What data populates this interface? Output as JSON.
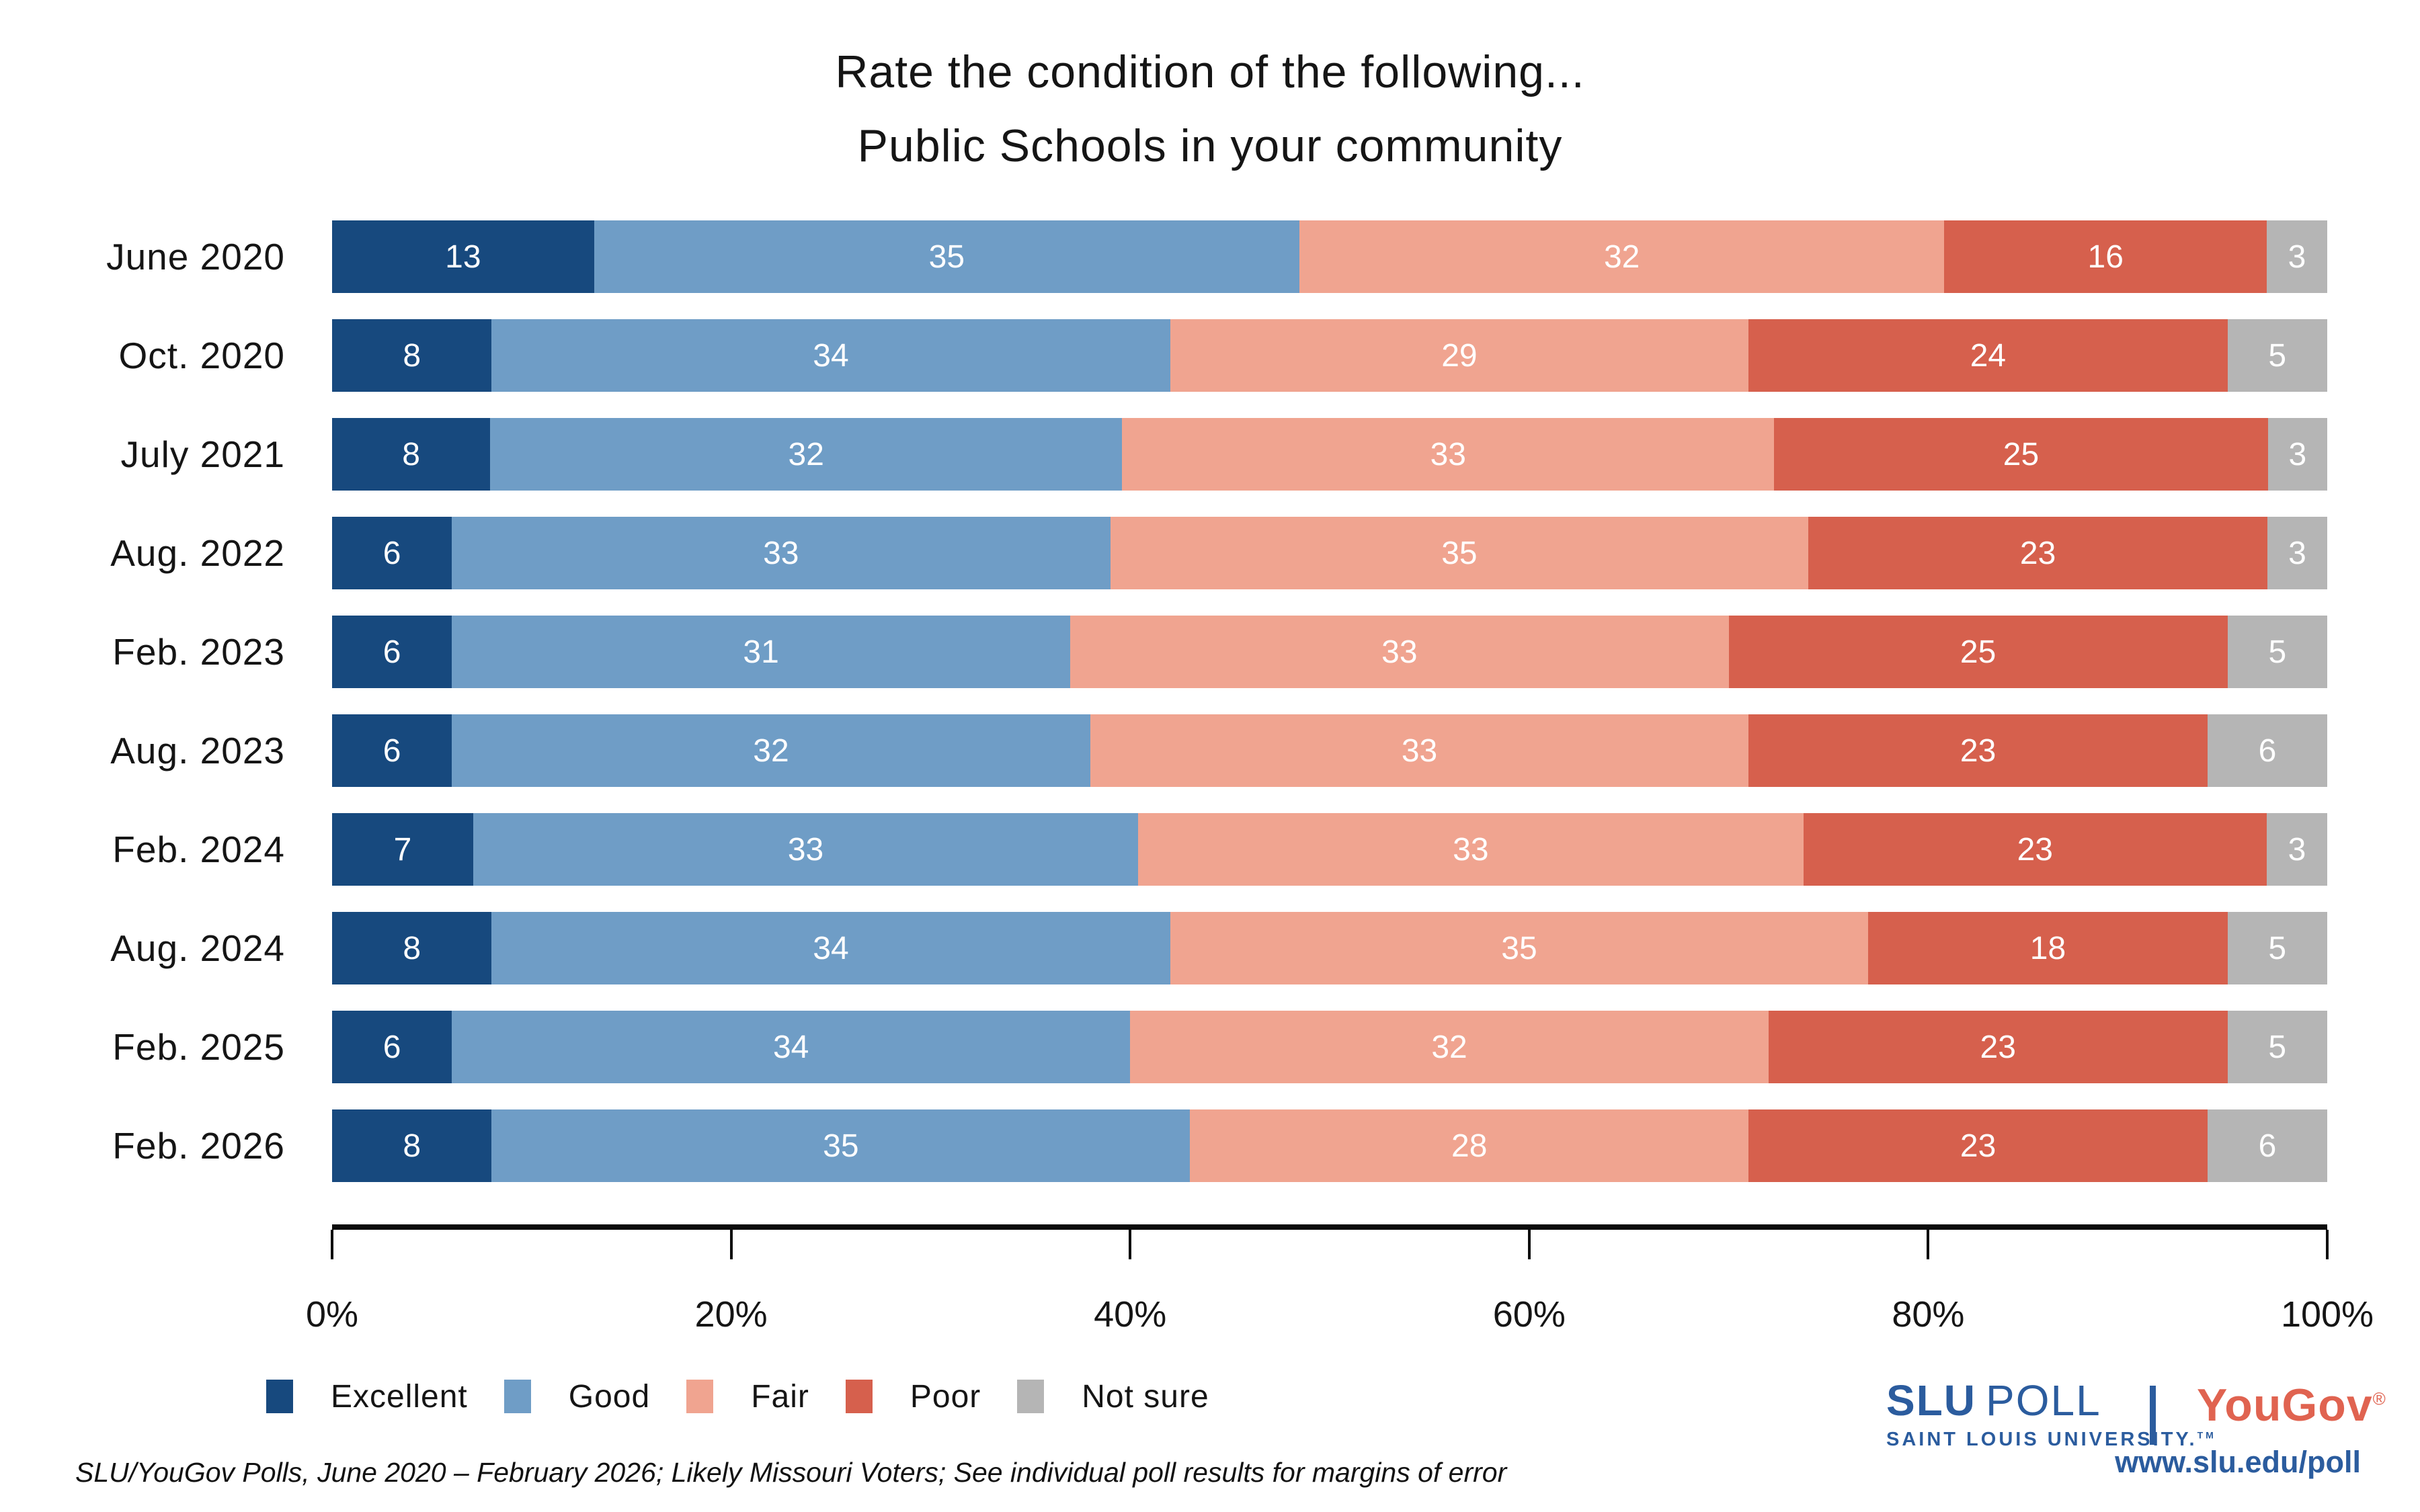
{
  "title": {
    "line1": "Rate the condition of the following...",
    "line2": "Public Schools in your community"
  },
  "chart_data": {
    "type": "bar",
    "orientation": "horizontal",
    "stacked": true,
    "categories": [
      "June 2020",
      "Oct. 2020",
      "July 2021",
      "Aug. 2022",
      "Feb. 2023",
      "Aug. 2023",
      "Feb. 2024",
      "Aug. 2024",
      "Feb. 2025",
      "Feb. 2026"
    ],
    "series": [
      {
        "name": "Excellent",
        "color": "#17497E",
        "values": [
          13,
          8,
          8,
          6,
          6,
          6,
          7,
          8,
          6,
          8
        ]
      },
      {
        "name": "Good",
        "color": "#6F9DC6",
        "values": [
          35,
          34,
          32,
          33,
          31,
          32,
          33,
          34,
          34,
          35
        ]
      },
      {
        "name": "Fair",
        "color": "#F0A490",
        "values": [
          32,
          29,
          33,
          35,
          33,
          33,
          33,
          35,
          32,
          28
        ]
      },
      {
        "name": "Poor",
        "color": "#D6604D",
        "values": [
          16,
          24,
          25,
          23,
          25,
          23,
          23,
          18,
          23,
          23
        ]
      },
      {
        "name": "Not sure",
        "color": "#B5B5B5",
        "values": [
          3,
          5,
          3,
          3,
          5,
          6,
          3,
          5,
          5,
          6
        ]
      }
    ],
    "x_axis": {
      "ticks": [
        "0%",
        "20%",
        "40%",
        "60%",
        "80%",
        "100%"
      ],
      "range": [
        0,
        100
      ]
    },
    "legend_position": "bottom-left",
    "value_labels": "inside-white"
  },
  "footer": {
    "note": "SLU/YouGov Polls, June 2020 – February 2026; Likely Missouri Voters; See individual poll results for margins of error"
  },
  "branding": {
    "slu_bold": "SLU",
    "slu_rest": "POLL",
    "slu_subtitle": "SAINT LOUIS UNIVERSITY.",
    "slu_tm": "TM",
    "slu_blue": "#2B5C9E",
    "yougov": "YouGov",
    "yougov_reg": "®",
    "yougov_coral": "#E06350",
    "url": "www.slu.edu/poll"
  }
}
